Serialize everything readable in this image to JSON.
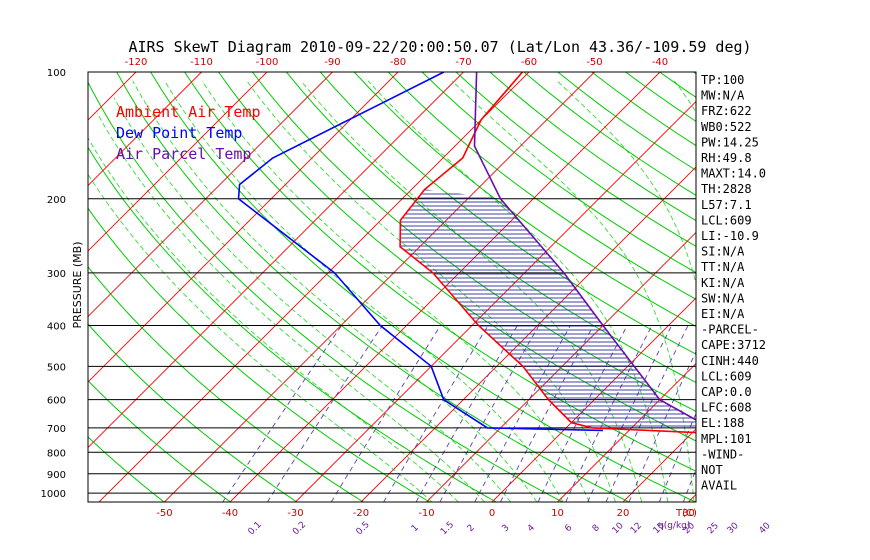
{
  "title": "AIRS SkewT Diagram 2010-09-22/20:00:50.07 (Lat/Lon 43.36/-109.59 deg)",
  "colors": {
    "ambient": "#ff0000",
    "dewpoint": "#0000ff",
    "parcel": "#6a0dad",
    "isotherm": "#ff0000",
    "dry_adiabat": "#00cc00",
    "moist_adiabat": "#33dd33",
    "mixing_ratio": "#5a3fb0",
    "isobar": "#000000"
  },
  "chart_data": {
    "type": "line",
    "ylabel": "PRESSURE (MB)",
    "xlabel_bottom": "T(C)",
    "xlabel_mixing": "q(g/kg)",
    "y_scale": "log",
    "ylim": [
      1050,
      100
    ],
    "pressure_ticks": [
      "100",
      "200",
      "300",
      "400",
      "500",
      "600",
      "700",
      "800",
      "900",
      "1000"
    ],
    "pressure_values": [
      100,
      200,
      300,
      400,
      500,
      600,
      700,
      800,
      900,
      1000
    ],
    "top_temp_ticks": [
      "-120",
      "-110",
      "-100",
      "-90",
      "-80",
      "-70",
      "-60",
      "-50",
      "-40"
    ],
    "top_temp_values": [
      -120,
      -110,
      -100,
      -90,
      -80,
      -70,
      -60,
      -50,
      -40
    ],
    "bottom_temp_ticks": [
      "-50",
      "-40",
      "-30",
      "-20",
      "-10",
      "0",
      "10",
      "20",
      "30"
    ],
    "bottom_temp_values": [
      -50,
      -40,
      -30,
      -20,
      -10,
      0,
      10,
      20,
      30
    ],
    "mixing_ratio_ticks": [
      "0.1",
      "0.2",
      "0.5",
      "1",
      "1.5",
      "2",
      "3",
      "4",
      "6",
      "8",
      "10",
      "12",
      "15",
      "20",
      "25",
      "30",
      "40"
    ],
    "mixing_ratio_values": [
      0.1,
      0.2,
      0.5,
      1,
      1.5,
      2,
      3,
      4,
      6,
      8,
      10,
      12,
      15,
      20,
      25,
      30,
      40
    ],
    "legend": [
      "Ambient Air Temp",
      "Dew Point Temp",
      "Air Parcel Temp"
    ],
    "series": [
      {
        "name": "Ambient Air Temp",
        "pressure": [
          100,
          130,
          160,
          190,
          225,
          260,
          300,
          400,
          500,
          600,
          680,
          700,
          720
        ],
        "temperature": [
          -61,
          -60,
          -57,
          -58,
          -57,
          -53,
          -44,
          -29,
          -16,
          -7,
          0,
          4,
          22
        ]
      },
      {
        "name": "Dew Point Temp",
        "pressure": [
          100,
          160,
          185,
          200,
          300,
          400,
          500,
          600,
          700,
          710
        ],
        "temperature": [
          -73,
          -86,
          -87,
          -85,
          -59,
          -44,
          -30,
          -23,
          -12,
          6
        ]
      },
      {
        "name": "Air Parcel Temp",
        "pressure": [
          100,
          150,
          200,
          300,
          400,
          500,
          600,
          700
        ],
        "temperature": [
          -68,
          -57,
          -45,
          -24,
          -10,
          1,
          10,
          22
        ]
      }
    ],
    "indices": [
      "TP:100",
      "MW:N/A",
      "FRZ:622",
      "WB0:522",
      "PW:14.25",
      "RH:49.8",
      "MAXT:14.0",
      "TH:2828",
      "L57:7.1",
      "LCL:609",
      "LI:-10.9",
      "SI:N/A",
      "TT:N/A",
      "KI:N/A",
      "SW:N/A",
      "EI:N/A",
      "-PARCEL-",
      "CAPE:3712",
      "CINH:440",
      "LCL:609",
      "CAP:0.0",
      "LFC:608",
      "EL:188",
      "MPL:101",
      "-WIND-",
      "NOT",
      "AVAIL"
    ]
  }
}
